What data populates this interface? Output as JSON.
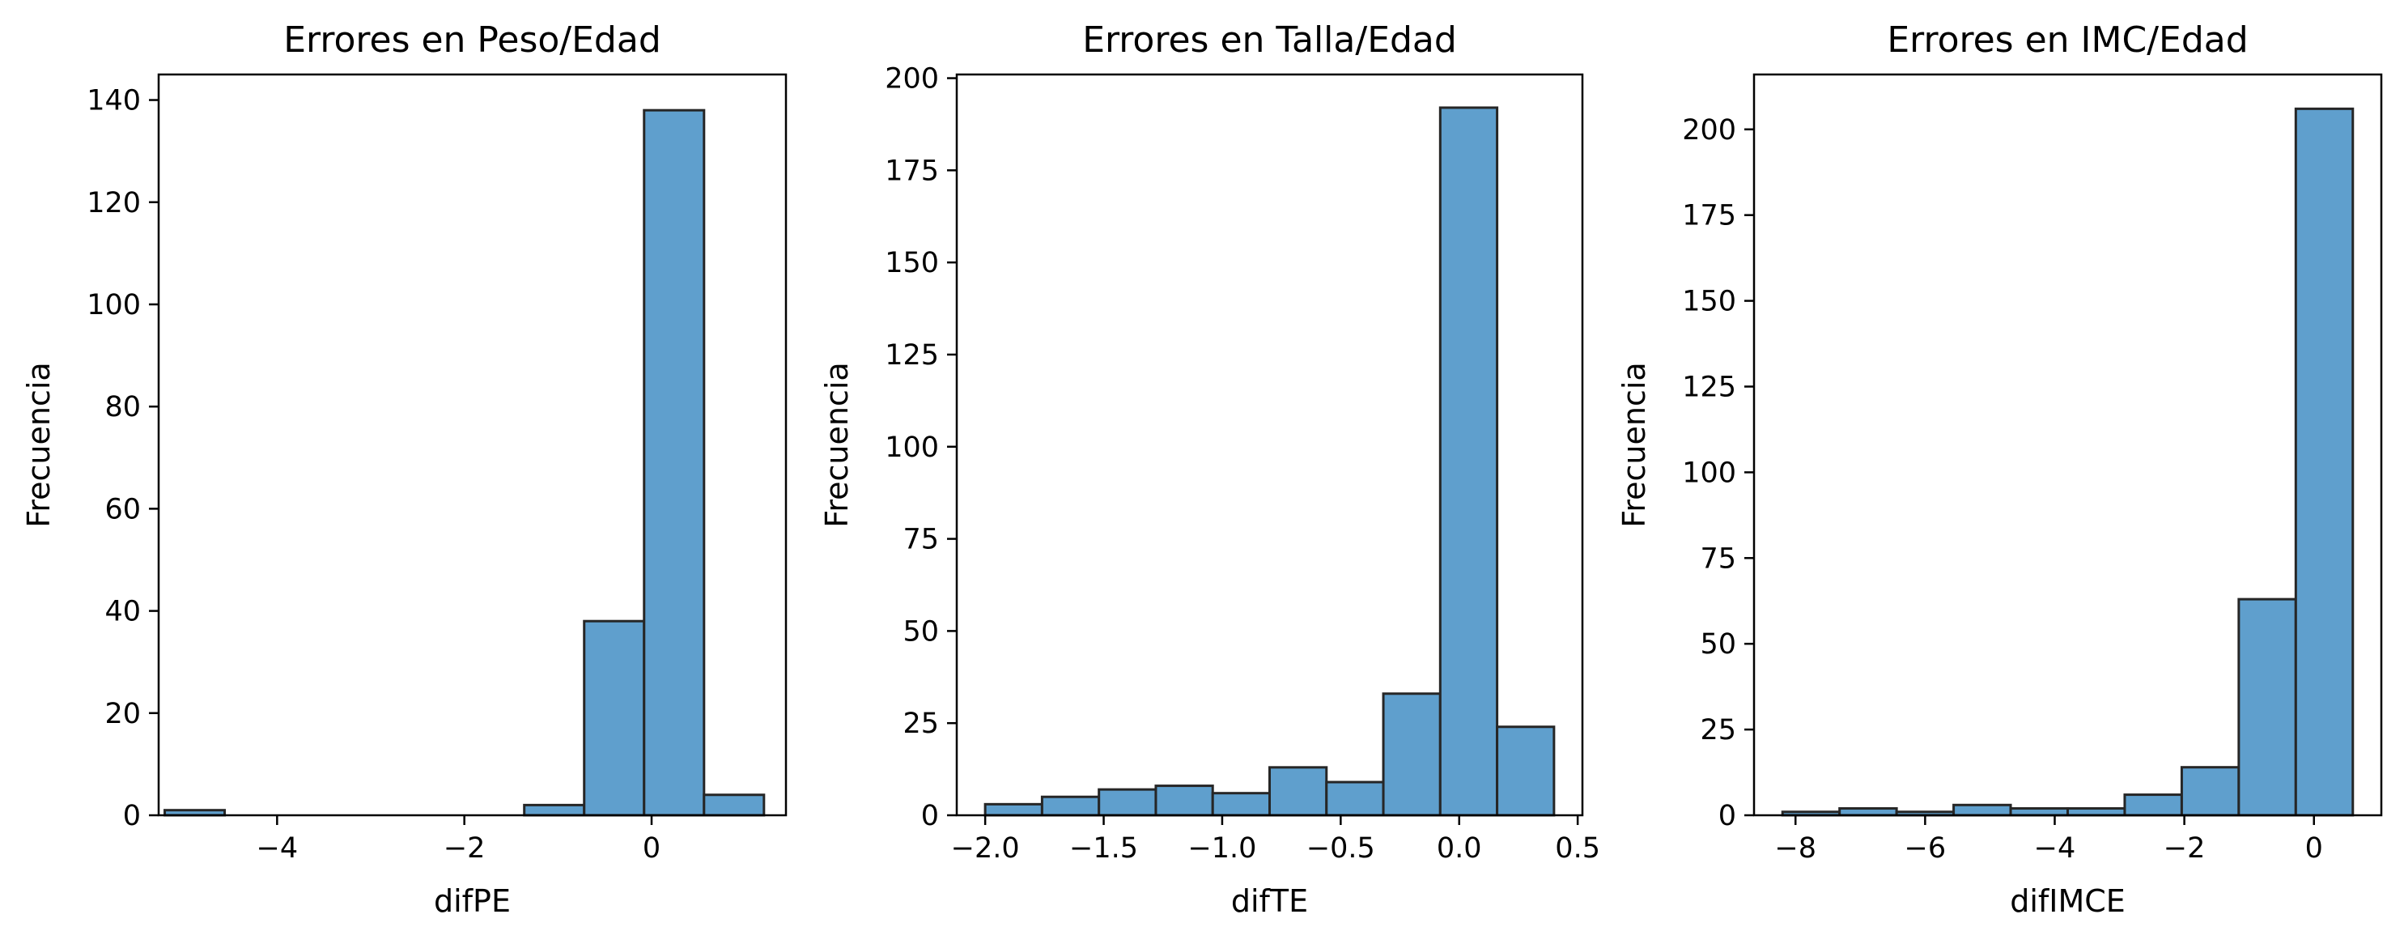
{
  "chart_data": [
    {
      "type": "bar",
      "title": "Errores en Peso/Edad",
      "xlabel": "difPE",
      "ylabel": "Frecuencia",
      "xlim": [
        -5.265,
        1.435
      ],
      "ylim": [
        0,
        145
      ],
      "xticks": [
        -4,
        -2,
        0
      ],
      "xtick_labels": [
        "−4",
        "−2",
        "0"
      ],
      "yticks": [
        0,
        20,
        40,
        60,
        80,
        100,
        120,
        140
      ],
      "bin_edges": [
        -5.2,
        -4.56,
        -3.92,
        -3.28,
        -2.64,
        -2.0,
        -1.36,
        -0.72,
        -0.08,
        0.56,
        1.2
      ],
      "values": [
        1,
        0,
        0,
        0,
        0,
        0,
        2,
        38,
        138,
        4
      ],
      "bar_color": "#5f9fcd",
      "edge_color": "#262626",
      "grid": false
    },
    {
      "type": "bar",
      "title": "Errores en Talla/Edad",
      "xlabel": "difTE",
      "ylabel": "Frecuencia",
      "xlim": [
        -2.12,
        0.52
      ],
      "ylim": [
        0,
        201
      ],
      "xticks": [
        -2.0,
        -1.5,
        -1.0,
        -0.5,
        0.0,
        0.5
      ],
      "xtick_labels": [
        "−2.0",
        "−1.5",
        "−1.0",
        "−0.5",
        "0.0",
        "0.5"
      ],
      "yticks": [
        0,
        25,
        50,
        75,
        100,
        125,
        150,
        175,
        200
      ],
      "bin_edges": [
        -2.0,
        -1.76,
        -1.52,
        -1.28,
        -1.04,
        -0.8,
        -0.56,
        -0.32,
        -0.08,
        0.16,
        0.4
      ],
      "values": [
        3,
        5,
        7,
        8,
        6,
        13,
        9,
        33,
        192,
        24
      ],
      "bar_color": "#5f9fcd",
      "edge_color": "#262626",
      "grid": false
    },
    {
      "type": "bar",
      "title": "Errores en IMC/Edad",
      "xlabel": "difIMCE",
      "ylabel": "Frecuencia",
      "xlim": [
        -8.64,
        1.04
      ],
      "ylim": [
        0,
        216
      ],
      "xticks": [
        -8,
        -6,
        -4,
        -2,
        0
      ],
      "xtick_labels": [
        "−8",
        "−6",
        "−4",
        "−2",
        "0"
      ],
      "yticks": [
        0,
        25,
        50,
        75,
        100,
        125,
        150,
        175,
        200
      ],
      "bin_edges": [
        -8.2,
        -7.32,
        -6.44,
        -5.56,
        -4.68,
        -3.8,
        -2.92,
        -2.04,
        -1.16,
        -0.28,
        0.6
      ],
      "values": [
        1,
        2,
        1,
        3,
        2,
        2,
        6,
        14,
        63,
        206
      ],
      "bar_color": "#5f9fcd",
      "edge_color": "#262626",
      "grid": false
    }
  ]
}
